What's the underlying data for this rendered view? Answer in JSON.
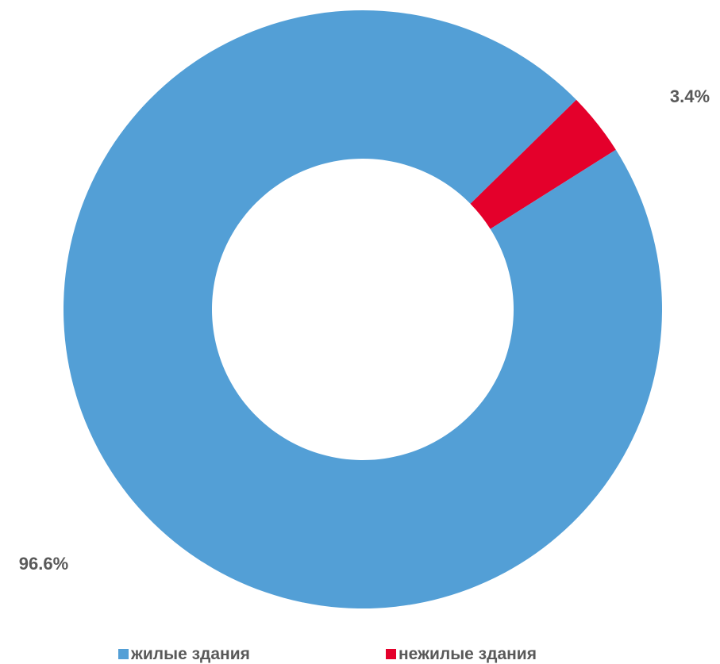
{
  "chart_data": {
    "type": "pie",
    "variant": "donut",
    "title": "",
    "categories": [
      "жилые здания",
      "нежилые здания"
    ],
    "values": [
      96.6,
      3.4
    ],
    "data_labels": [
      "96.6%",
      "3.4%"
    ],
    "colors": [
      "#539fd6",
      "#e4002b"
    ],
    "legend_position": "bottom",
    "series": [
      {
        "values": [
          96.6,
          3.4
        ]
      }
    ]
  },
  "legend": {
    "items": [
      {
        "label": "жилые здания",
        "color": "#539fd6"
      },
      {
        "label": "нежилые здания",
        "color": "#e4002b"
      }
    ]
  }
}
